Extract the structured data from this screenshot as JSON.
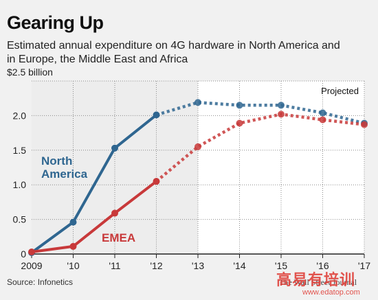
{
  "header": {
    "title": "Gearing Up",
    "subtitle": "Estimated annual expenditure on 4G hardware in North America and in Europe, the Middle East and Africa"
  },
  "footer": {
    "source": "Source: Infonetics",
    "credit": "The Wall Street Journal",
    "watermark": "高易有培训",
    "watermark_url": "www.edatop.com"
  },
  "chart_data": {
    "type": "line",
    "x": [
      "2009",
      "'10",
      "'11",
      "'12",
      "'13",
      "'14",
      "'15",
      "'16",
      "'17"
    ],
    "ylim": [
      0,
      2.5
    ],
    "yticks": [
      "0",
      "0.5",
      "1.0",
      "1.5",
      "2.0",
      "$2.5 billion"
    ],
    "projected_label": "Projected",
    "projected_from_index": 4,
    "grid": true,
    "series": [
      {
        "name": "North America",
        "color": "#2f6690",
        "values": [
          0.02,
          0.46,
          1.53,
          2.01,
          2.19,
          2.15,
          2.15,
          2.04,
          1.89
        ]
      },
      {
        "name": "EMEA",
        "color": "#c8393a",
        "values": [
          0.03,
          0.11,
          0.59,
          1.05,
          1.55,
          1.89,
          2.02,
          1.94,
          1.87
        ]
      }
    ]
  }
}
